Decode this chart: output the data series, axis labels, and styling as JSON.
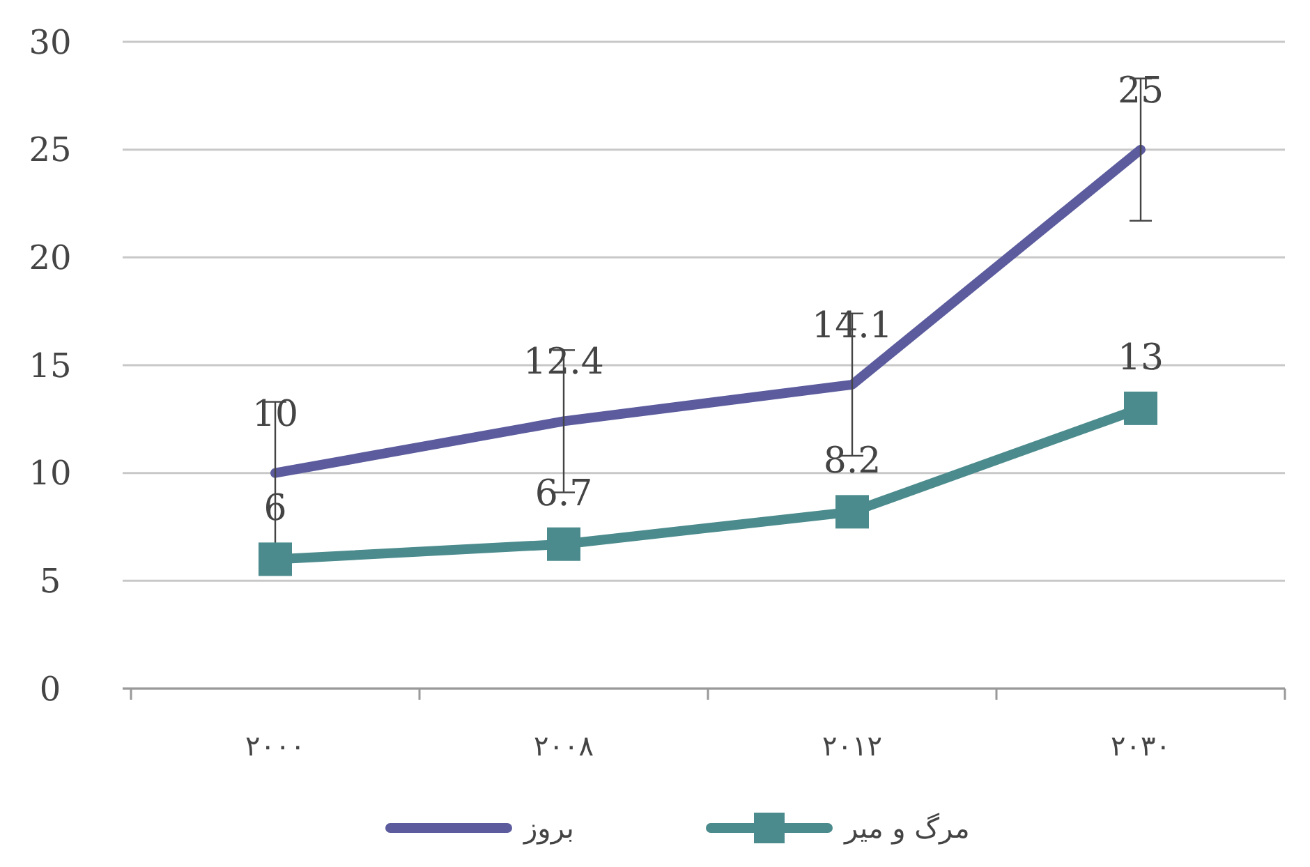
{
  "chart_data": {
    "type": "line",
    "categories": [
      "۲۰۰۰",
      "۲۰۰۸",
      "۲۰۱۲",
      "۲۰۳۰"
    ],
    "series": [
      {
        "name": "بروز",
        "color": "#5b5b9e",
        "values": [
          10,
          12.4,
          14.1,
          25
        ],
        "errors": [
          3.3,
          3.3,
          3.3,
          3.3
        ],
        "marker": "none"
      },
      {
        "name": "مرگ و میر",
        "color": "#4b8b8d",
        "values": [
          6,
          6.7,
          8.2,
          13
        ],
        "marker": "square"
      }
    ],
    "ylim": [
      0,
      30
    ],
    "yticks": [
      0,
      5,
      10,
      15,
      20,
      25,
      30
    ],
    "grid": "y",
    "legend": "bottom",
    "data_labels": true,
    "line_style": "solid"
  }
}
